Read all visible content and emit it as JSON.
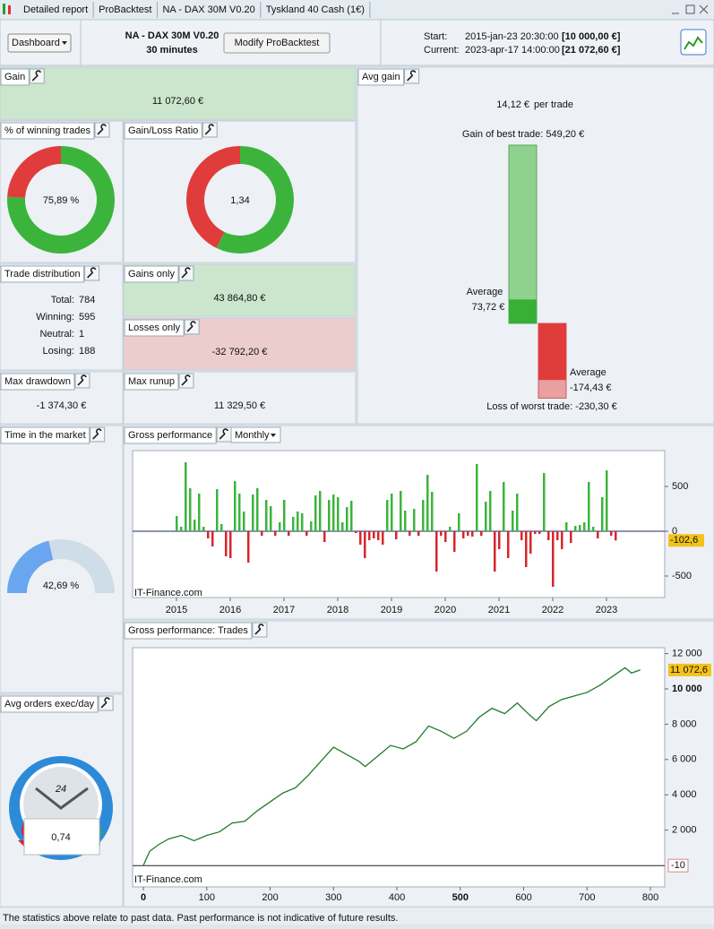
{
  "tabs": [
    "Detailed report",
    "ProBacktest",
    "NA - DAX 30M V0.20",
    "Tyskland 40 Cash (1€)"
  ],
  "toolbar": {
    "dashboard": "Dashboard",
    "system": "NA - DAX 30M V0.20",
    "timeframe": "30 minutes",
    "modify": "Modify ProBacktest",
    "start_label": "Start:",
    "start_date": "2015-jan-23 20:30:00",
    "start_capital": "[10 000,00 €]",
    "current_label": "Current:",
    "current_date": "2023-apr-17 14:00:00",
    "current_capital": "[21 072,60 €]"
  },
  "gain": {
    "title": "Gain",
    "value": "11 072,60 €"
  },
  "winning": {
    "title": "% of winning trades",
    "value": 75.89,
    "label": "75,89 %"
  },
  "ratio": {
    "title": "Gain/Loss Ratio",
    "value": 1.34,
    "label": "1,34"
  },
  "avg_gain": {
    "title": "Avg gain",
    "value": "14,12 €",
    "unit": "per trade",
    "best": {
      "label": "Gain of best trade: 549,20 €",
      "value": 549.2
    },
    "avg_win": {
      "title": "Average",
      "label": "73,72 €",
      "value": 73.72
    },
    "avg_loss": {
      "title": "Average",
      "label": "-174,43 €",
      "value": -174.43
    },
    "worst": {
      "label": "Loss of worst trade: -230,30 €",
      "value": -230.3
    }
  },
  "distribution": {
    "title": "Trade distribution",
    "rows": [
      [
        "Total:",
        "784"
      ],
      [
        "Winning:",
        "595"
      ],
      [
        "Neutral:",
        "1"
      ],
      [
        "Losing:",
        "188"
      ]
    ]
  },
  "gains_only": {
    "title": "Gains only",
    "value": "43 864,80 €"
  },
  "losses_only": {
    "title": "Losses only",
    "value": "-32 792,20 €"
  },
  "drawdown": {
    "title": "Max drawdown",
    "value": "-1 374,30 €"
  },
  "runup": {
    "title": "Max runup",
    "value": "11 329,50 €"
  },
  "time_market": {
    "title": "Time in the market",
    "value": 42.69,
    "label": "42,69 %"
  },
  "orders": {
    "title": "Avg orders exec/day",
    "clock": "24",
    "value": "0,74"
  },
  "monthly": {
    "title": "Gross performance",
    "period": "Monthly",
    "watermark": "IT-Finance.com",
    "xlim": [
      -9.8,
      109
    ],
    "xticks": [
      {
        "value": 0,
        "label": "2015"
      },
      {
        "value": 12,
        "label": "2016"
      },
      {
        "value": 24,
        "label": "2017"
      },
      {
        "value": 36,
        "label": "2018"
      },
      {
        "value": 48,
        "label": "2019"
      },
      {
        "value": 60,
        "label": "2020"
      },
      {
        "value": 72,
        "label": "2021"
      },
      {
        "value": 84,
        "label": "2022"
      },
      {
        "value": 96,
        "label": "2023"
      }
    ],
    "ylim": [
      -740,
      900
    ],
    "yticks": [
      500,
      0,
      -500
    ],
    "values": [
      170,
      50,
      770,
      480,
      130,
      420,
      50,
      -80,
      -170,
      470,
      80,
      -280,
      -300,
      560,
      420,
      220,
      -350,
      410,
      480,
      -50,
      350,
      280,
      -50,
      100,
      350,
      -50,
      160,
      220,
      200,
      -50,
      110,
      400,
      450,
      -120,
      350,
      410,
      380,
      100,
      270,
      340,
      -20,
      -150,
      -300,
      -100,
      -80,
      -100,
      -150,
      350,
      420,
      -90,
      450,
      230,
      -50,
      250,
      -50,
      350,
      630,
      440,
      -450,
      -50,
      -120,
      50,
      -230,
      200,
      -80,
      -50,
      -60,
      750,
      -50,
      330,
      450,
      -450,
      -200,
      550,
      -300,
      230,
      420,
      -100,
      -400,
      -250,
      -30,
      -30,
      650,
      -100,
      -620,
      -100,
      -200,
      100,
      -130,
      60,
      70,
      100,
      550,
      50,
      -80,
      380,
      680,
      -50,
      -102.6
    ],
    "current": {
      "value": -102.6,
      "label": "-102,6"
    }
  },
  "equity": {
    "title": "Gross performance: Trades",
    "watermark": "IT-Finance.com",
    "xlim": [
      -17,
      822.6
    ],
    "xticks": [
      0,
      100,
      200,
      300,
      400,
      500,
      600,
      700,
      800
    ],
    "ylim": [
      -1218,
      12335
    ],
    "yticks": [
      {
        "value": 12000,
        "label": "12 000"
      },
      {
        "value": 10000,
        "label": "10 000"
      },
      {
        "value": 8000,
        "label": "8 000"
      },
      {
        "value": 6000,
        "label": "6 000"
      },
      {
        "value": 4000,
        "label": "4 000"
      },
      {
        "value": 2000,
        "label": "2 000"
      }
    ],
    "x": [
      0,
      10,
      25,
      40,
      60,
      80,
      100,
      120,
      140,
      160,
      180,
      200,
      220,
      240,
      260,
      280,
      300,
      320,
      340,
      350,
      370,
      390,
      410,
      430,
      450,
      470,
      490,
      510,
      530,
      550,
      570,
      590,
      610,
      620,
      640,
      660,
      680,
      700,
      720,
      740,
      760,
      770,
      784
    ],
    "values": [
      0,
      800,
      1200,
      1500,
      1700,
      1400,
      1700,
      1900,
      2400,
      2500,
      3100,
      3600,
      4100,
      4400,
      5100,
      5900,
      6700,
      6300,
      5900,
      5600,
      6200,
      6800,
      6600,
      7000,
      7900,
      7600,
      7200,
      7600,
      8400,
      8900,
      8600,
      9200,
      8500,
      8200,
      9000,
      9400,
      9600,
      9800,
      10200,
      10700,
      11200,
      10900,
      11072.6
    ],
    "current": {
      "value": 11072.6,
      "label": "11 072,6"
    },
    "baseline": {
      "value": -10,
      "label": "-10"
    }
  },
  "footer": "The statistics above relate to past data. Past performance is not indicative of future results."
}
